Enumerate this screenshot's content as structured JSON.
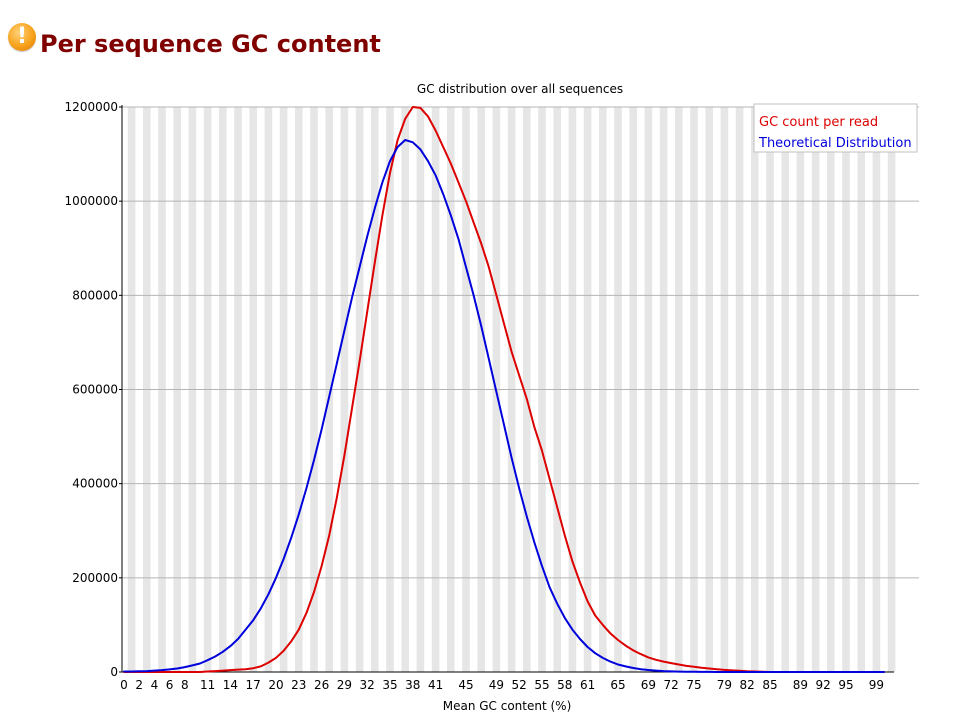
{
  "module": {
    "title": "Per sequence GC content",
    "status_icon": "warning-icon",
    "status_color": "#f7a21b",
    "title_color": "#800000"
  },
  "chart_data": {
    "type": "line",
    "title": "GC distribution over all sequences",
    "xlabel": "Mean GC content (%)",
    "ylabel": "",
    "xlim": [
      0,
      100
    ],
    "ylim": [
      0,
      1200000
    ],
    "grid": true,
    "legend_position": "top-right",
    "yticks": [
      0,
      200000,
      400000,
      600000,
      800000,
      1000000,
      1200000
    ],
    "xticks": [
      0,
      2,
      4,
      6,
      8,
      11,
      14,
      17,
      20,
      23,
      26,
      29,
      32,
      35,
      38,
      41,
      45,
      49,
      52,
      55,
      58,
      61,
      65,
      69,
      72,
      75,
      79,
      82,
      85,
      89,
      92,
      95,
      99
    ],
    "x": [
      0,
      1,
      2,
      3,
      4,
      5,
      6,
      7,
      8,
      9,
      10,
      11,
      12,
      13,
      14,
      15,
      16,
      17,
      18,
      19,
      20,
      21,
      22,
      23,
      24,
      25,
      26,
      27,
      28,
      29,
      30,
      31,
      32,
      33,
      34,
      35,
      36,
      37,
      38,
      39,
      40,
      41,
      42,
      43,
      44,
      45,
      46,
      47,
      48,
      49,
      50,
      51,
      52,
      53,
      54,
      55,
      56,
      57,
      58,
      59,
      60,
      61,
      62,
      63,
      64,
      65,
      66,
      67,
      68,
      69,
      70,
      71,
      72,
      73,
      74,
      75,
      76,
      77,
      78,
      79,
      80,
      81,
      82,
      83,
      84,
      85,
      86,
      87,
      88,
      89,
      90,
      91,
      92,
      93,
      94,
      95,
      96,
      97,
      98,
      99,
      100
    ],
    "series": [
      {
        "name": "GC count per read",
        "color": "#dd0000",
        "values": [
          0,
          0,
          0,
          0,
          0,
          0,
          0,
          0,
          0,
          0,
          0,
          1000,
          2000,
          3000,
          4000,
          5000,
          6000,
          8000,
          12000,
          20000,
          30000,
          45000,
          65000,
          90000,
          125000,
          170000,
          225000,
          290000,
          370000,
          460000,
          560000,
          660000,
          765000,
          870000,
          970000,
          1060000,
          1130000,
          1175000,
          1200000,
          1198000,
          1180000,
          1150000,
          1115000,
          1080000,
          1040000,
          1000000,
          955000,
          910000,
          860000,
          800000,
          740000,
          680000,
          630000,
          580000,
          520000,
          470000,
          410000,
          350000,
          290000,
          235000,
          190000,
          150000,
          120000,
          100000,
          82000,
          68000,
          56000,
          46000,
          38000,
          31000,
          26000,
          22000,
          19000,
          16000,
          13000,
          11000,
          9000,
          7500,
          6000,
          4500,
          3500,
          2500,
          1500,
          1000,
          500,
          0,
          0,
          0,
          0,
          0,
          0,
          0,
          0,
          0,
          0,
          0,
          0,
          0,
          0,
          0,
          0
        ]
      },
      {
        "name": "Theoretical Distribution",
        "color": "#0000dd",
        "values": [
          1000,
          1000,
          1500,
          2000,
          3000,
          4000,
          5500,
          7500,
          10500,
          14000,
          18000,
          25000,
          33000,
          43000,
          55000,
          70000,
          90000,
          110000,
          135000,
          165000,
          200000,
          240000,
          285000,
          335000,
          390000,
          450000,
          515000,
          585000,
          655000,
          725000,
          795000,
          860000,
          925000,
          985000,
          1040000,
          1085000,
          1115000,
          1130000,
          1125000,
          1110000,
          1085000,
          1055000,
          1015000,
          970000,
          920000,
          860000,
          800000,
          735000,
          665000,
          595000,
          525000,
          455000,
          390000,
          330000,
          275000,
          225000,
          180000,
          145000,
          115000,
          90000,
          70000,
          53000,
          40000,
          30000,
          22000,
          16000,
          12000,
          8500,
          6000,
          4200,
          3000,
          2000,
          1300,
          900,
          600,
          400,
          250,
          150,
          100,
          50,
          0,
          0,
          0,
          0,
          0,
          0,
          0,
          0,
          0,
          0,
          0,
          0,
          0,
          0,
          0,
          0,
          0,
          0,
          0,
          0,
          0
        ]
      }
    ]
  }
}
